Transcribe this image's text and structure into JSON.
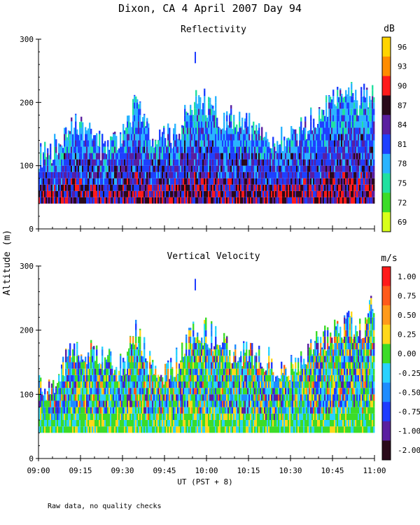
{
  "figure": {
    "title": "Dixon, CA   4 April 2007   Day  94",
    "ylabel": "Altitude (m)",
    "xlabel": "UT  (PST + 8)",
    "note": "Raw data, no quality checks",
    "x_ticks": [
      "09:00",
      "09:15",
      "09:30",
      "09:45",
      "10:00",
      "10:15",
      "10:30",
      "10:45",
      "11:00"
    ]
  },
  "chart_data": [
    {
      "type": "heatmap",
      "title": "Reflectivity",
      "ylabel": "Altitude (m)",
      "xlabel": "UT  (PST + 8)",
      "x_range_minutes_after_0900": [
        0,
        120
      ],
      "ylim": [
        0,
        300
      ],
      "y_ticks": [
        0,
        100,
        200,
        300
      ],
      "colorbar": {
        "unit": "dB",
        "tick_labels": [
          "96",
          "93",
          "90",
          "87",
          "84",
          "81",
          "78",
          "75",
          "72",
          "69"
        ],
        "bands": [
          "#ffd400",
          "#ff8c00",
          "#ff1a1a",
          "#2a0a1a",
          "#5a1fa0",
          "#1e40ff",
          "#2ab4ff",
          "#22e0a0",
          "#3cdc28",
          "#d8ff1a"
        ]
      },
      "echo_floor_m": 40,
      "echo_top_profile": [
        {
          "minute": 0,
          "top_m": 120
        },
        {
          "minute": 5,
          "top_m": 120
        },
        {
          "minute": 10,
          "top_m": 160
        },
        {
          "minute": 15,
          "top_m": 160
        },
        {
          "minute": 20,
          "top_m": 140
        },
        {
          "minute": 25,
          "top_m": 120
        },
        {
          "minute": 30,
          "top_m": 160
        },
        {
          "minute": 35,
          "top_m": 200
        },
        {
          "minute": 40,
          "top_m": 140
        },
        {
          "minute": 45,
          "top_m": 140
        },
        {
          "minute": 50,
          "top_m": 150
        },
        {
          "minute": 55,
          "top_m": 200
        },
        {
          "minute": 60,
          "top_m": 200
        },
        {
          "minute": 65,
          "top_m": 180
        },
        {
          "minute": 70,
          "top_m": 180
        },
        {
          "minute": 75,
          "top_m": 160
        },
        {
          "minute": 80,
          "top_m": 160
        },
        {
          "minute": 85,
          "top_m": 140
        },
        {
          "minute": 90,
          "top_m": 140
        },
        {
          "minute": 95,
          "top_m": 160
        },
        {
          "minute": 100,
          "top_m": 180
        },
        {
          "minute": 105,
          "top_m": 200
        },
        {
          "minute": 110,
          "top_m": 220
        },
        {
          "minute": 115,
          "top_m": 200
        },
        {
          "minute": 120,
          "top_m": 220
        }
      ],
      "isolated_echo": {
        "minute": 56,
        "altitude_m": [
          262,
          280
        ]
      }
    },
    {
      "type": "heatmap",
      "title": "Vertical Velocity",
      "ylabel": "Altitude (m)",
      "xlabel": "UT  (PST + 8)",
      "x_range_minutes_after_0900": [
        0,
        120
      ],
      "ylim": [
        0,
        300
      ],
      "y_ticks": [
        0,
        100,
        200,
        300
      ],
      "colorbar": {
        "unit": "m/s",
        "tick_labels": [
          "1.00",
          "0.75",
          "0.50",
          "0.25",
          "0.00",
          "-0.25",
          "-0.50",
          "-0.75",
          "-1.00",
          "-2.00"
        ],
        "bands": [
          "#ff1a1a",
          "#ff5a1a",
          "#ff9a1a",
          "#ffd81a",
          "#3cdc28",
          "#2ad2ff",
          "#1e8cff",
          "#1e3cff",
          "#5a1fa0",
          "#2a0a1a"
        ]
      },
      "echo_floor_m": 40,
      "echo_top_profile": [
        {
          "minute": 0,
          "top_m": 120
        },
        {
          "minute": 5,
          "top_m": 110
        },
        {
          "minute": 10,
          "top_m": 160
        },
        {
          "minute": 15,
          "top_m": 170
        },
        {
          "minute": 20,
          "top_m": 160
        },
        {
          "minute": 25,
          "top_m": 150
        },
        {
          "minute": 30,
          "top_m": 140
        },
        {
          "minute": 35,
          "top_m": 200
        },
        {
          "minute": 40,
          "top_m": 140
        },
        {
          "minute": 45,
          "top_m": 140
        },
        {
          "minute": 50,
          "top_m": 150
        },
        {
          "minute": 55,
          "top_m": 190
        },
        {
          "minute": 60,
          "top_m": 200
        },
        {
          "minute": 65,
          "top_m": 180
        },
        {
          "minute": 70,
          "top_m": 170
        },
        {
          "minute": 75,
          "top_m": 160
        },
        {
          "minute": 80,
          "top_m": 160
        },
        {
          "minute": 85,
          "top_m": 140
        },
        {
          "minute": 90,
          "top_m": 140
        },
        {
          "minute": 95,
          "top_m": 160
        },
        {
          "minute": 100,
          "top_m": 180
        },
        {
          "minute": 105,
          "top_m": 200
        },
        {
          "minute": 110,
          "top_m": 210
        },
        {
          "minute": 115,
          "top_m": 200
        },
        {
          "minute": 120,
          "top_m": 240
        }
      ],
      "isolated_echo": {
        "minute": 56,
        "altitude_m": [
          262,
          280
        ]
      }
    }
  ]
}
